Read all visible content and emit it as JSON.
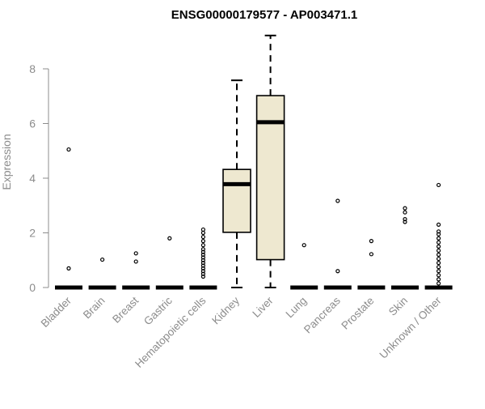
{
  "chart_data": {
    "type": "boxplot",
    "title": "ENSG00000179577 - AP003471.1",
    "xlabel": "",
    "ylabel": "Expression",
    "ylim": [
      0,
      9.2
    ],
    "yticks": [
      0,
      2,
      4,
      6,
      8
    ],
    "grid": false,
    "box_fill": "#EEE8D0",
    "categories": [
      "Bladder",
      "Brain",
      "Breast",
      "Gastric",
      "Hematopoietic cells",
      "Kidney",
      "Liver",
      "Lung",
      "Pancreas",
      "Prostate",
      "Skin",
      "Unknown / Other"
    ],
    "boxes": [
      {
        "min": 0,
        "q1": 0,
        "median": 0,
        "q3": 0,
        "max": 0,
        "outliers": [
          0.7,
          5.05
        ]
      },
      {
        "min": 0,
        "q1": 0,
        "median": 0,
        "q3": 0,
        "max": 0,
        "outliers": [
          1.02
        ]
      },
      {
        "min": 0,
        "q1": 0,
        "median": 0,
        "q3": 0,
        "max": 0,
        "outliers": [
          0.95,
          1.25
        ]
      },
      {
        "min": 0,
        "q1": 0,
        "median": 0,
        "q3": 0,
        "max": 0,
        "outliers": [
          1.8
        ]
      },
      {
        "min": 0,
        "q1": 0,
        "median": 0,
        "q3": 0,
        "max": 0,
        "outliers": [
          0.4,
          0.5,
          0.6,
          0.7,
          0.8,
          0.9,
          1.0,
          1.1,
          1.2,
          1.3,
          1.4,
          1.55,
          1.7,
          1.85,
          2.0,
          2.12
        ]
      },
      {
        "min": 0,
        "q1": 2.02,
        "median": 3.78,
        "q3": 4.32,
        "max": 7.58,
        "outliers": []
      },
      {
        "min": 0,
        "q1": 1.02,
        "median": 6.05,
        "q3": 7.02,
        "max": 9.22,
        "outliers": []
      },
      {
        "min": 0,
        "q1": 0,
        "median": 0,
        "q3": 0,
        "max": 0,
        "outliers": [
          1.55
        ]
      },
      {
        "min": 0,
        "q1": 0,
        "median": 0,
        "q3": 0,
        "max": 0,
        "outliers": [
          0.6,
          3.17
        ]
      },
      {
        "min": 0,
        "q1": 0,
        "median": 0,
        "q3": 0,
        "max": 0,
        "outliers": [
          1.22,
          1.7
        ]
      },
      {
        "min": 0,
        "q1": 0,
        "median": 0,
        "q3": 0,
        "max": 0,
        "outliers": [
          2.4,
          2.5,
          2.75,
          2.9
        ]
      },
      {
        "min": 0,
        "q1": 0,
        "median": 0,
        "q3": 0,
        "max": 0,
        "outliers": [
          0.15,
          0.3,
          0.45,
          0.6,
          0.75,
          0.9,
          1.05,
          1.2,
          1.35,
          1.5,
          1.65,
          1.8,
          1.95,
          2.05,
          2.3,
          3.75
        ]
      }
    ]
  }
}
